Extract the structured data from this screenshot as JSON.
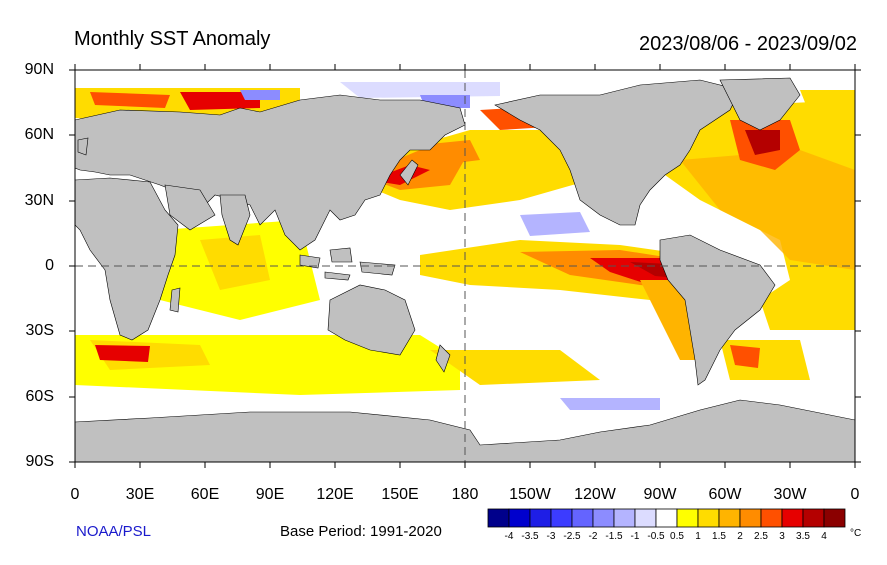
{
  "title": "Monthly SST Anomaly",
  "date_range": "2023/08/06 - 2023/09/02",
  "credit": "NOAA/PSL",
  "base_period": "Base Period: 1991-2020",
  "y_labels": [
    "90N",
    "60N",
    "30N",
    "0",
    "30S",
    "60S",
    "90S"
  ],
  "x_labels": [
    "0",
    "30E",
    "60E",
    "90E",
    "120E",
    "150E",
    "180",
    "150W",
    "120W",
    "90W",
    "60W",
    "30W",
    "0"
  ],
  "colorbar": {
    "unit": "°C",
    "tick_labels": [
      "-4",
      "-3.5",
      "-3",
      "-2.5",
      "-2",
      "-1.5",
      "-1",
      "-0.5",
      "0.5",
      "1",
      "1.5",
      "2",
      "2.5",
      "3",
      "3.5",
      "4"
    ],
    "colors": [
      "#00008b",
      "#0000cd",
      "#1e1ee6",
      "#3c3cff",
      "#6464ff",
      "#8c8cff",
      "#b4b4ff",
      "#dcdcff",
      "#ffffff",
      "#ffff00",
      "#ffdc00",
      "#ffb400",
      "#ff8c00",
      "#ff5000",
      "#e60000",
      "#b40000",
      "#8b0000"
    ]
  },
  "colors": {
    "land": "#c0c0c0",
    "ocean_neutral": "#ffffff",
    "grid_dash": "#555555"
  }
}
